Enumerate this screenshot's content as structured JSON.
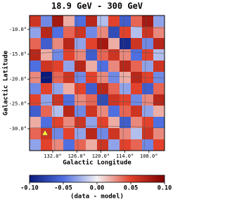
{
  "chart_data": {
    "type": "heatmap",
    "title": "18.9 GeV - 300 GeV",
    "x_label": "Galactic Longitude",
    "y_label": "Galactic Latitude",
    "colorbar_label": "(data - model)",
    "xlim": [
      137.8,
      104.1
    ],
    "xticks": [
      {
        "value": 132,
        "label": "132.0°"
      },
      {
        "value": 126,
        "label": "126.0°"
      },
      {
        "value": 120,
        "label": "120.0°"
      },
      {
        "value": 114,
        "label": "114.0°"
      },
      {
        "value": 108,
        "label": "108.0°"
      }
    ],
    "ylim": [
      -34.4,
      -7.2
    ],
    "yticks": [
      {
        "value": -10,
        "label": "-10.0°"
      },
      {
        "value": -15,
        "label": "-15.0°"
      },
      {
        "value": -20,
        "label": "-20.0°"
      },
      {
        "value": -25,
        "label": "-25.0°"
      },
      {
        "value": -30,
        "label": "-30.0°"
      }
    ],
    "clim": [
      -0.1,
      0.1
    ],
    "cticks": [
      {
        "value": -0.1,
        "label": "-0.10"
      },
      -0.05,
      {
        "value": 0,
        "label": "0.00"
      },
      0.05,
      {
        "value": 0.1,
        "label": "0.10"
      }
    ],
    "colormap": [
      "#0a1a7a",
      "#4f6fe0",
      "#f4f2f4",
      "#e2422c",
      "#7a0000"
    ],
    "z": [
      [
        0.06,
        -0.04,
        0.08,
        0.02,
        -0.05,
        0.07,
        -0.02,
        0.05,
        -0.06,
        0.04,
        0.08,
        -0.03
      ],
      [
        -0.03,
        0.07,
        -0.05,
        0.04,
        0.06,
        -0.04,
        0.03,
        -0.07,
        0.05,
        -0.02,
        0.06,
        0.03
      ],
      [
        0.04,
        -0.06,
        0.03,
        0.07,
        -0.03,
        0.05,
        0.08,
        0.02,
        -0.09,
        0.06,
        -0.04,
        0.07
      ],
      [
        0.07,
        0.02,
        -0.04,
        0.05,
        0.03,
        -0.06,
        0.04,
        0.06,
        0.03,
        -0.05,
        0.05,
        -0.02
      ],
      [
        -0.05,
        0.06,
        0.05,
        -0.03,
        0.07,
        0.02,
        -0.05,
        0.03,
        0.07,
        0.04,
        -0.03,
        0.06
      ],
      [
        0.03,
        -0.1,
        0.04,
        0.06,
        -0.04,
        0.05,
        0.03,
        -0.04,
        0.02,
        0.07,
        0.05,
        -0.04
      ],
      [
        -0.04,
        0.05,
        -0.03,
        0.02,
        0.05,
        -0.06,
        0.07,
        0.04,
        -0.03,
        0.05,
        -0.06,
        0.04
      ],
      [
        0.05,
        -0.03,
        0.06,
        -0.05,
        0.03,
        0.04,
        -0.07,
        0.06,
        0.05,
        -0.04,
        0.03,
        0.07
      ],
      [
        -0.06,
        0.04,
        -0.02,
        0.07,
        -0.04,
        0.06,
        0.03,
        -0.05,
        0.04,
        0.06,
        -0.03,
        0.02
      ],
      [
        0.02,
        -0.05,
        0.05,
        0.03,
        0.06,
        -0.03,
        0.05,
        0.02,
        -0.06,
        0.03,
        0.05,
        -0.05
      ],
      [
        0.04,
        0.06,
        -0.04,
        0.05,
        -0.03,
        0.07,
        -0.04,
        0.06,
        0.03,
        -0.02,
        0.06,
        0.03
      ],
      [
        -0.03,
        0.05,
        0.03,
        -0.05,
        0.04,
        0.02,
        0.06,
        -0.03,
        0.05,
        0.04,
        -0.04,
        0.05
      ]
    ]
  }
}
